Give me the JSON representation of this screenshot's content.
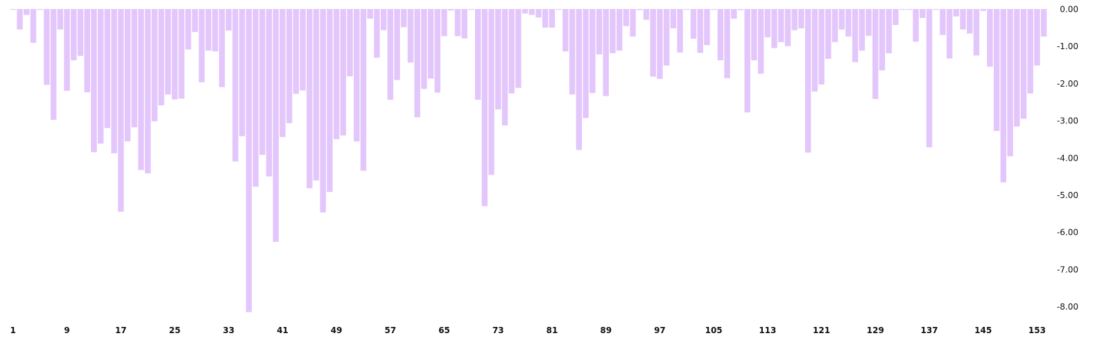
{
  "chart_data": {
    "type": "bar",
    "title": "",
    "xlabel": "",
    "ylabel": "",
    "ylim": [
      -8.25,
      0
    ],
    "y_axis_side": "right",
    "grid": false,
    "legend": "none",
    "bar_color": "#e3c6fb",
    "x_tick_labels": [
      "1",
      "9",
      "17",
      "25",
      "33",
      "41",
      "49",
      "57",
      "65",
      "73",
      "81",
      "89",
      "97",
      "105",
      "113",
      "121",
      "129",
      "137",
      "145",
      "153"
    ],
    "y_tick_labels": [
      "0.00",
      "-1.00",
      "-2.00",
      "-3.00",
      "-4.00",
      "-5.00",
      "-6.00",
      "-7.00",
      "-8.00"
    ],
    "series": [
      {
        "values": [
          -0.02,
          -0.55,
          -0.16,
          -0.91,
          -0.02,
          -2.04,
          -2.98,
          -0.55,
          -2.2,
          -1.38,
          -1.26,
          -2.24,
          -3.85,
          -3.62,
          -3.2,
          -3.88,
          -5.45,
          -3.56,
          -3.18,
          -4.33,
          -4.42,
          -3.02,
          -2.59,
          -2.3,
          -2.43,
          -2.41,
          -1.09,
          -0.62,
          -1.97,
          -1.12,
          -1.14,
          -2.1,
          -0.58,
          -4.1,
          -3.42,
          -8.15,
          -4.78,
          -3.92,
          -4.5,
          -6.26,
          -3.44,
          -3.07,
          -2.28,
          -2.19,
          -4.82,
          -4.61,
          -5.47,
          -4.92,
          -3.5,
          -3.4,
          -1.81,
          -3.56,
          -4.35,
          -0.26,
          -1.31,
          -0.57,
          -2.44,
          -1.91,
          -0.49,
          -1.44,
          -2.91,
          -2.15,
          -1.87,
          -2.25,
          -0.73,
          -0.04,
          -0.73,
          -0.79,
          -0.02,
          -2.44,
          -5.3,
          -4.46,
          -2.7,
          -3.13,
          -2.27,
          -2.12,
          -0.12,
          -0.16,
          -0.23,
          -0.5,
          -0.5,
          -0.02,
          -1.14,
          -2.3,
          -3.79,
          -2.93,
          -2.26,
          -1.22,
          -2.34,
          -1.19,
          -1.12,
          -0.46,
          -0.74,
          -0.03,
          -0.29,
          -1.82,
          -1.88,
          -1.52,
          -0.52,
          -1.17,
          -0.02,
          -0.8,
          -1.18,
          -0.97,
          -0.02,
          -1.38,
          -1.86,
          -0.26,
          -0.03,
          -2.78,
          -1.38,
          -1.74,
          -0.76,
          -1.05,
          -0.89,
          -1.0,
          -0.57,
          -0.52,
          -3.86,
          -2.22,
          -2.03,
          -1.34,
          -0.89,
          -0.55,
          -0.74,
          -1.43,
          -1.12,
          -0.72,
          -2.42,
          -1.65,
          -1.19,
          -0.43,
          -0.02,
          -0.02,
          -0.88,
          -0.24,
          -3.72,
          -0.02,
          -0.7,
          -1.33,
          -0.2,
          -0.55,
          -0.66,
          -1.25,
          -0.05,
          -1.55,
          -3.28,
          -4.66,
          -3.96,
          -3.16,
          -2.95,
          -2.27,
          -1.52,
          -0.74
        ]
      }
    ]
  }
}
